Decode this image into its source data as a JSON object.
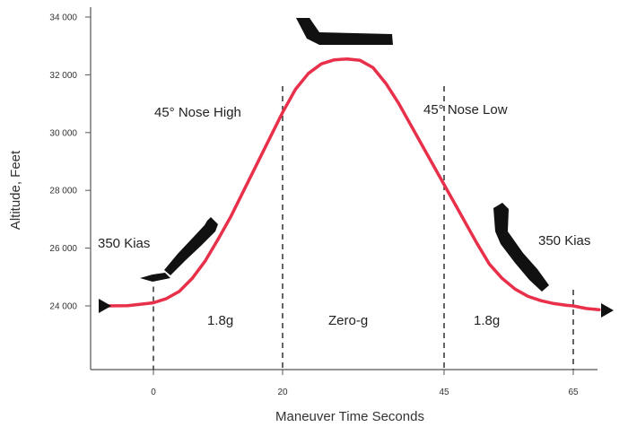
{
  "chart_data": {
    "type": "line",
    "title": "",
    "xlabel": "Maneuver Time Seconds",
    "ylabel": "Altitude, Feet",
    "x_ticks": [
      0,
      20,
      45,
      65
    ],
    "y_ticks": [
      24000,
      26000,
      28000,
      30000,
      32000,
      34000
    ],
    "y_tick_labels": [
      "24 000",
      "26 000",
      "28 000",
      "30 000",
      "32 000",
      "34 000"
    ],
    "xlim": [
      -8,
      71
    ],
    "ylim": [
      22000,
      34000
    ],
    "grid": false,
    "legend": "none",
    "series": [
      {
        "x": [
          -7,
          -4,
          -1,
          0,
          2,
          4,
          6,
          8,
          10,
          12,
          14,
          16,
          18,
          20,
          22,
          24,
          26,
          28,
          30,
          32,
          34,
          36,
          38,
          40,
          42,
          44,
          46,
          48,
          50,
          52,
          54,
          56,
          58,
          60,
          62,
          64,
          65,
          67,
          69
        ],
        "y": [
          24000,
          24010,
          24080,
          24110,
          24250,
          24500,
          24950,
          25550,
          26300,
          27100,
          28000,
          28900,
          29800,
          30700,
          31500,
          32050,
          32380,
          32520,
          32550,
          32500,
          32250,
          31700,
          31000,
          30200,
          29400,
          28600,
          27800,
          27000,
          26200,
          25450,
          24950,
          24580,
          24330,
          24180,
          24080,
          24020,
          24000,
          23910,
          23870
        ]
      }
    ],
    "phase_markers_x": [
      0,
      20,
      45,
      65
    ],
    "annotations": {
      "nose_high": "45° Nose High",
      "nose_low": "45° Nose Low",
      "kias_left": "350 Kias",
      "kias_right": "350 Kias",
      "g_left": "1.8g",
      "g_mid": "Zero-g",
      "g_right": "1.8g"
    },
    "colors": {
      "line": "#e8304a",
      "axis": "#555555",
      "marker": "#222222",
      "aircraft": "#111111"
    }
  }
}
